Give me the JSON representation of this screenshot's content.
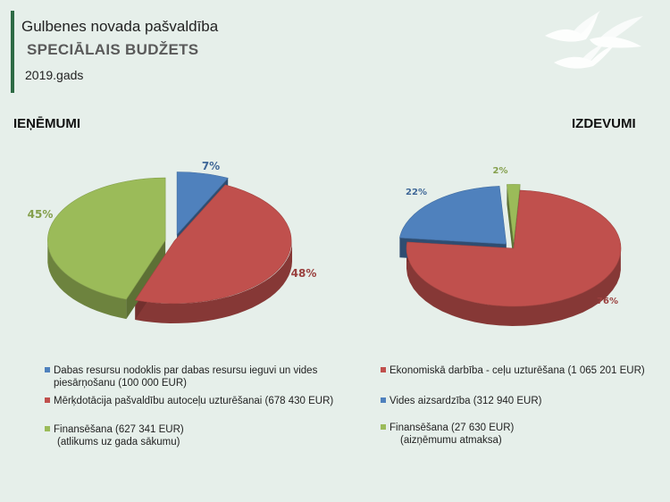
{
  "header": {
    "municipality": "Gulbenes novada pašvaldība",
    "budget_title": "SPECIĀLAIS BUDŽETS",
    "year": "2019.gads"
  },
  "colors": {
    "blue": "#4f81bd",
    "red": "#c0504d",
    "green": "#9bbb59"
  },
  "chart_data": [
    {
      "type": "pie",
      "title": "IEŅĒMUMI",
      "slices": [
        {
          "label": "Dabas resursu nodoklis par dabas resursu ieguvi un vides piesārņošanu (100 000 EUR)",
          "value": 100000,
          "percent_label": "7%",
          "color": "#4f81bd"
        },
        {
          "label": "Mērķdotācija pašvaldību autoceļu uzturēšanai (678 430 EUR)",
          "value": 678430,
          "percent_label": "48%",
          "color": "#c0504d"
        },
        {
          "label": "Finansēšana (627 341 EUR)",
          "value": 627341,
          "percent_label": "45%",
          "color": "#9bbb59",
          "note": "(atlikums uz gada sākumu)"
        }
      ]
    },
    {
      "type": "pie",
      "title": "IZDEVUMI",
      "slices": [
        {
          "label": "Ekonomiskā darbība - ceļu uzturēšana (1 065 201 EUR)",
          "value": 1065201,
          "percent_label": "76%",
          "color": "#c0504d"
        },
        {
          "label": "Vides aizsardzība (312 940 EUR)",
          "value": 312940,
          "percent_label": "22%",
          "color": "#4f81bd"
        },
        {
          "label": "Finansēšana (27 630 EUR)",
          "value": 27630,
          "percent_label": "2%",
          "color": "#9bbb59",
          "note": "(aizņēmumu atmaksa)"
        }
      ]
    }
  ]
}
